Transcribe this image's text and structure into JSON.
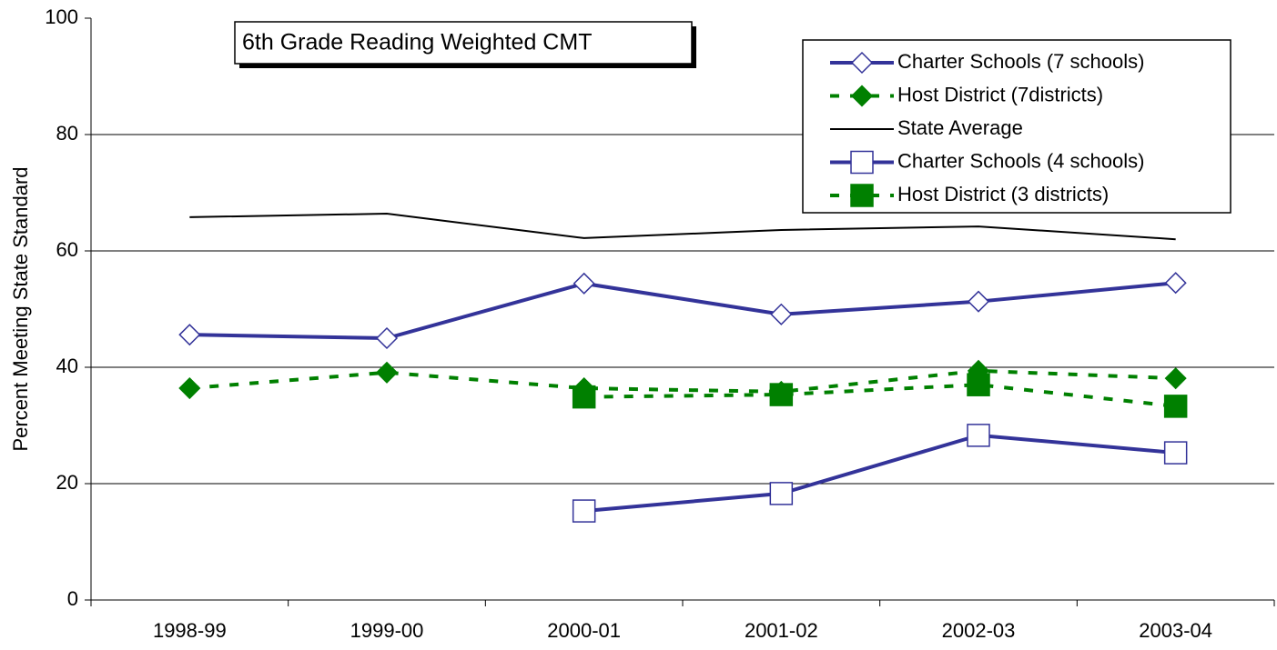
{
  "chart_data": {
    "type": "line",
    "title": "6th Grade Reading Weighted CMT",
    "y_label": "Percent Meeting State Standard",
    "categories": [
      "1998-99",
      "1999-00",
      "2000-01",
      "2001-02",
      "2002-03",
      "2003-04"
    ],
    "series": [
      {
        "name": "Charter Schools (7 schools)",
        "color": "#333399",
        "marker": "diamond-open",
        "dashed": false,
        "values": [
          45.6,
          45.0,
          54.4,
          49.1,
          51.3,
          54.5
        ]
      },
      {
        "name": "Host District (7districts)",
        "color": "#008000",
        "marker": "diamond-filled",
        "dashed": true,
        "values": [
          36.4,
          39.1,
          36.4,
          35.8,
          39.4,
          38.1
        ]
      },
      {
        "name": "State Average",
        "color": "#000000",
        "marker": "none",
        "dashed": false,
        "values": [
          65.8,
          66.4,
          62.2,
          63.6,
          64.2,
          62.0
        ]
      },
      {
        "name": "Charter Schools (4 schools)",
        "color": "#333399",
        "marker": "square-open",
        "dashed": false,
        "values": [
          null,
          null,
          15.3,
          18.3,
          28.3,
          25.3
        ]
      },
      {
        "name": "Host District (3 districts)",
        "color": "#008000",
        "marker": "square-filled",
        "dashed": true,
        "values": [
          null,
          null,
          34.9,
          35.3,
          37.0,
          33.3
        ]
      }
    ],
    "ylim": [
      0,
      100
    ],
    "yticks": [
      0,
      20,
      40,
      60,
      80,
      100
    ],
    "grid": true
  }
}
